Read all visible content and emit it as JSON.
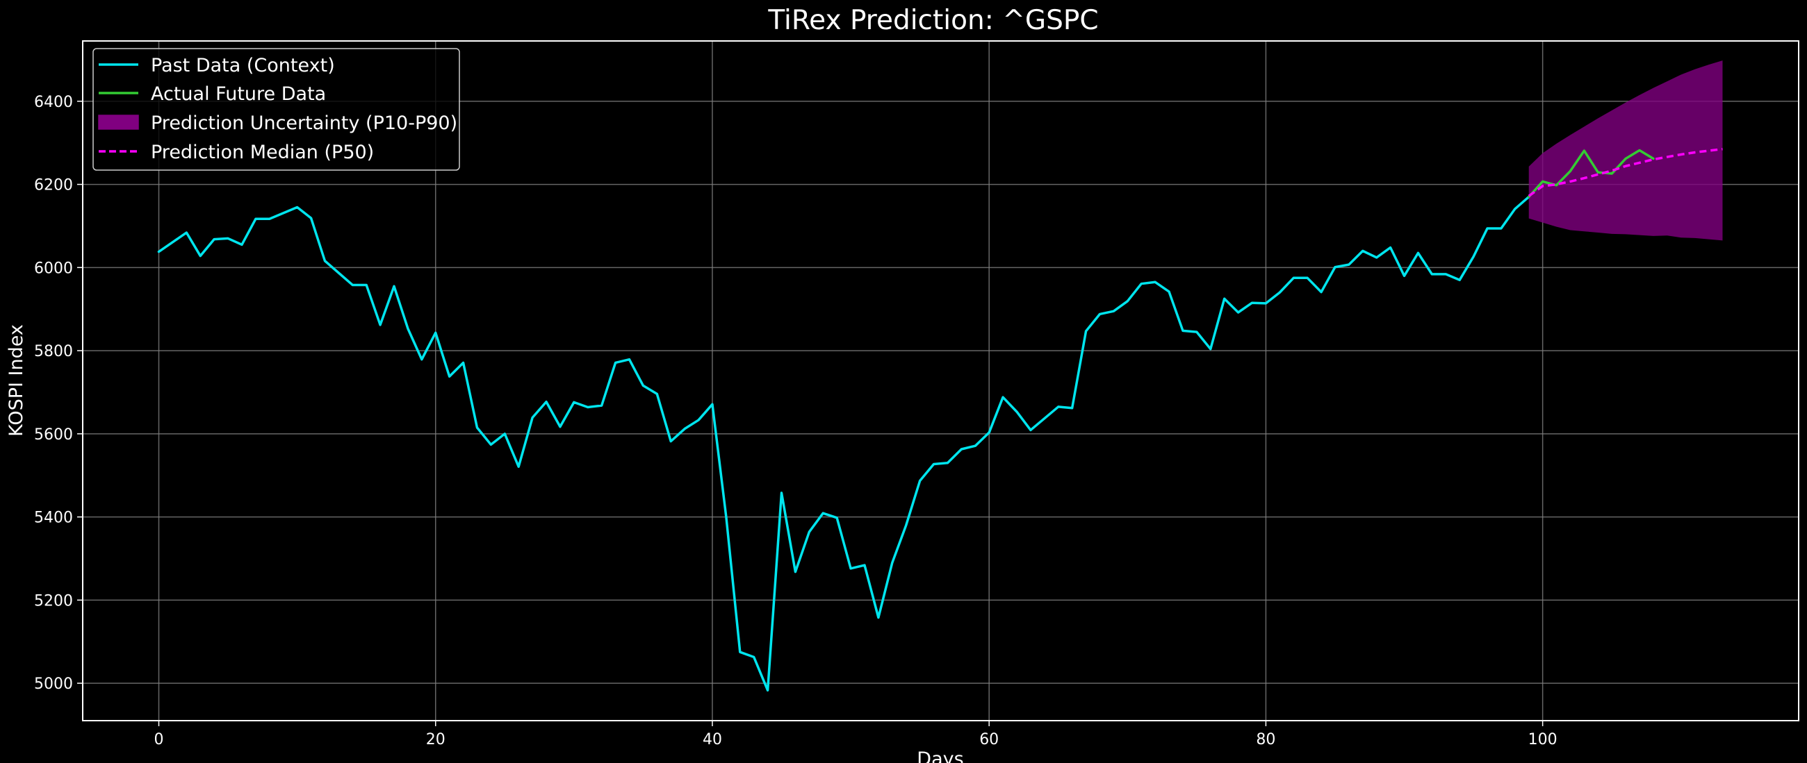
{
  "chart_data": {
    "type": "line",
    "title": "TiRex Prediction: ^GSPC",
    "xlabel": "Days",
    "ylabel": "KOSPI Index",
    "xlim": [
      -5.5,
      118.5
    ],
    "ylim": [
      4910,
      6545
    ],
    "xticks": [
      0,
      20,
      40,
      60,
      80,
      100
    ],
    "yticks": [
      5000,
      5200,
      5400,
      5600,
      5800,
      6000,
      6200,
      6400
    ],
    "grid": true,
    "legend_position": "top-left",
    "colors": {
      "background": "#000000",
      "context": "#00e5ee",
      "actual": "#33cc33",
      "band": "#800080",
      "median": "#ff00ff",
      "grid": "#7f7f7f",
      "axes": "#ffffff"
    },
    "series": [
      {
        "name": "Past Data (Context)",
        "style": "solid",
        "x": [
          0,
          1,
          2,
          3,
          4,
          5,
          6,
          7,
          8,
          9,
          10,
          11,
          12,
          13,
          14,
          15,
          16,
          17,
          18,
          19,
          20,
          21,
          22,
          23,
          24,
          25,
          26,
          27,
          28,
          29,
          30,
          31,
          32,
          33,
          34,
          35,
          36,
          37,
          38,
          39,
          40,
          41,
          42,
          43,
          44,
          45,
          46,
          47,
          48,
          49,
          50,
          51,
          52,
          53,
          54,
          55,
          56,
          57,
          58,
          59,
          60,
          61,
          62,
          63,
          64,
          65,
          66,
          67,
          68,
          69,
          70,
          71,
          72,
          73,
          74,
          75,
          76,
          77,
          78,
          79,
          80,
          81,
          82,
          83,
          84,
          85,
          86,
          87,
          88,
          89,
          90,
          91,
          92,
          93,
          94,
          95,
          96,
          97,
          98,
          99
        ],
        "y": [
          6038,
          6061,
          6084,
          6028,
          6068,
          6070,
          6055,
          6117,
          6117,
          6131,
          6145,
          6119,
          6016,
          5987,
          5958,
          5958,
          5862,
          5955,
          5853,
          5779,
          5843,
          5738,
          5771,
          5615,
          5574,
          5600,
          5521,
          5639,
          5677,
          5617,
          5676,
          5664,
          5668,
          5771,
          5779,
          5716,
          5696,
          5582,
          5612,
          5633,
          5671,
          5400,
          5075,
          5063,
          4983,
          5458,
          5268,
          5364,
          5409,
          5398,
          5276,
          5284,
          5158,
          5290,
          5380,
          5487,
          5527,
          5530,
          5563,
          5571,
          5603,
          5688,
          5653,
          5609,
          5637,
          5665,
          5662,
          5847,
          5888,
          5895,
          5919,
          5961,
          5965,
          5942,
          5848,
          5845,
          5804,
          5925,
          5892,
          5915,
          5914,
          5940,
          5975,
          5975,
          5941,
          6001,
          6007,
          6040,
          6024,
          6048,
          5980,
          6035,
          5984,
          5984,
          5970,
          6026,
          6094,
          6094,
          6141,
          6170
        ]
      },
      {
        "name": "Actual Future Data",
        "style": "solid",
        "x": [
          99,
          100,
          101,
          102,
          103,
          104,
          105,
          106,
          107,
          108
        ],
        "y": [
          6170,
          6207,
          6198,
          6232,
          6281,
          6229,
          6226,
          6262,
          6282,
          6262
        ]
      },
      {
        "name": "Prediction Median (P50)",
        "style": "dashed",
        "x": [
          99,
          100,
          101,
          102,
          103,
          104,
          105,
          106,
          107,
          108,
          109,
          110,
          111,
          112,
          113
        ],
        "y": [
          6172,
          6196,
          6200,
          6207,
          6215,
          6224,
          6233,
          6244,
          6252,
          6260,
          6266,
          6272,
          6277,
          6281,
          6285
        ]
      }
    ],
    "band": {
      "name": "Prediction Uncertainty (P10-P90)",
      "x": [
        99,
        100,
        101,
        102,
        103,
        104,
        105,
        106,
        107,
        108,
        109,
        110,
        111,
        112,
        113
      ],
      "upper": [
        6243,
        6275,
        6298,
        6319,
        6339,
        6359,
        6378,
        6397,
        6415,
        6432,
        6448,
        6464,
        6477,
        6488,
        6498
      ],
      "lower": [
        6118,
        6108,
        6098,
        6090,
        6087,
        6084,
        6081,
        6080,
        6078,
        6076,
        6077,
        6072,
        6071,
        6068,
        6065
      ]
    }
  }
}
